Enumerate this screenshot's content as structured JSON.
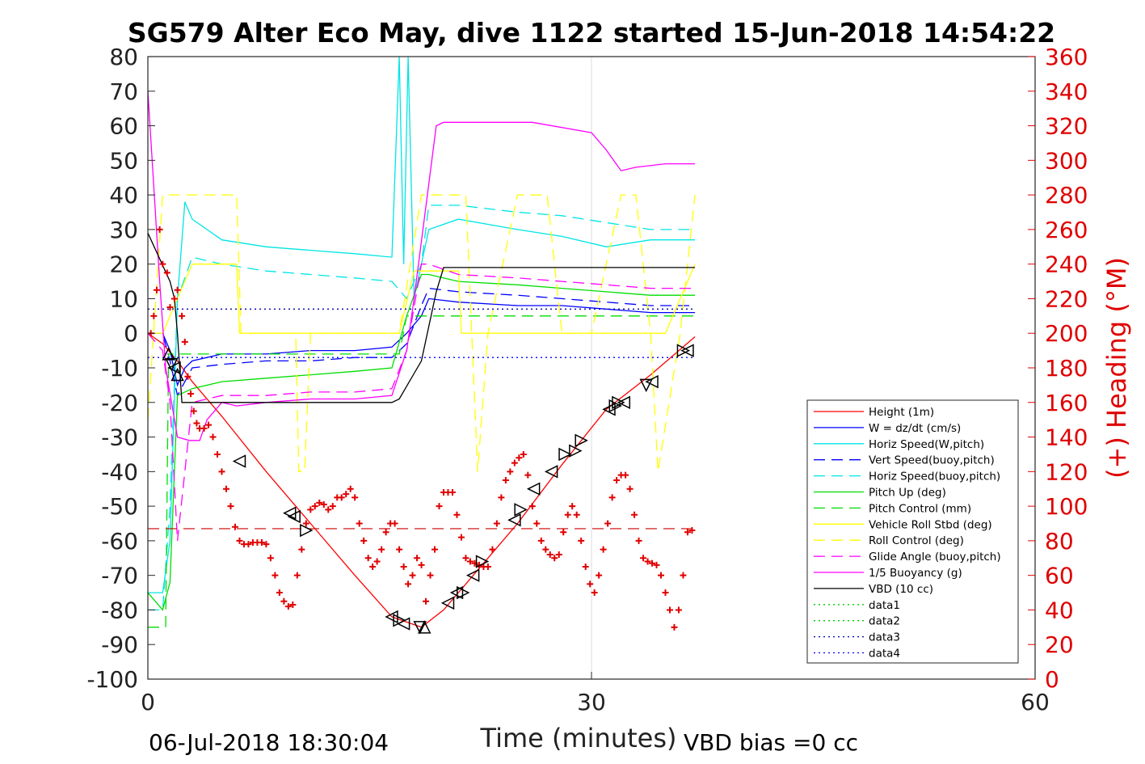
{
  "chart_data": {
    "type": "line",
    "title": "SG579 Alter Eco May, dive 1122 started 15-Jun-2018 14:54:22",
    "xlabel": "Time (minutes)",
    "ylabel_right": "(+) Heading (°M)",
    "xlim": [
      0,
      60
    ],
    "ylim_left": [
      -100,
      80
    ],
    "ylim_right": [
      0,
      360
    ],
    "x_ticks": [
      "0",
      "30",
      "60"
    ],
    "y_ticks_left": [
      "80",
      "70",
      "60",
      "50",
      "40",
      "30",
      "20",
      "10",
      "0",
      "-10",
      "-20",
      "-30",
      "-40",
      "-50",
      "-60",
      "-70",
      "-80",
      "-90",
      "-100"
    ],
    "y_ticks_right": [
      "360",
      "340",
      "320",
      "300",
      "280",
      "260",
      "240",
      "220",
      "200",
      "180",
      "160",
      "140",
      "120",
      "100",
      "80",
      "60",
      "40",
      "20",
      "0"
    ],
    "grid": "x only",
    "legend_position": "bottom-right",
    "footer_left": "06-Jul-2018 18:30:04",
    "footer_right": "VBD bias =0 cc",
    "colors": {
      "red": "#ff0000",
      "blue": "#0000ff",
      "cyan": "#00e5e5",
      "green": "#00dd00",
      "yellow": "#ffff00",
      "magenta": "#ff00ff",
      "black": "#000000",
      "heading": "#e00000"
    },
    "series": [
      {
        "name": "Height (1m)",
        "color": "#ff0000",
        "style": "solid",
        "x": [
          0,
          1,
          2,
          3,
          5,
          8,
          11,
          14,
          16.5,
          18.5,
          20,
          22,
          25,
          28,
          31,
          34,
          37
        ],
        "y": [
          0,
          -3,
          -8,
          -14,
          -24,
          -40,
          -55,
          -70,
          -82,
          -85,
          -80,
          -70,
          -55,
          -38,
          -22,
          -12,
          -1
        ]
      },
      {
        "name": "W = dz/dt (cm/s)",
        "color": "#0000ff",
        "style": "solid",
        "x": [
          0,
          1,
          1.5,
          2,
          2.5,
          3,
          5,
          8,
          11,
          14,
          16.5,
          17.5,
          18.5,
          19,
          21,
          25,
          28,
          31,
          34,
          37
        ],
        "y": [
          0,
          0,
          -5,
          -15,
          -10,
          -8,
          -6,
          -6,
          -5,
          -5,
          -4,
          0,
          5,
          10,
          9,
          8,
          8,
          7,
          6,
          6
        ]
      },
      {
        "name": "Horiz Speed(W,pitch)",
        "color": "#00e5e5",
        "style": "solid",
        "x": [
          0,
          1,
          1.5,
          2,
          2.5,
          3,
          5,
          8,
          11,
          14,
          16.5,
          17,
          17.3,
          17.6,
          18,
          18.5,
          19,
          21,
          25,
          28,
          31,
          34,
          37
        ],
        "y": [
          -75,
          -75,
          -60,
          10,
          38,
          33,
          27,
          25,
          24,
          23,
          22,
          80,
          20,
          80,
          10,
          20,
          30,
          33,
          30,
          28,
          25,
          27,
          27
        ]
      },
      {
        "name": "Vert Speed(buoy,pitch)",
        "color": "#0000ff",
        "style": "dashed",
        "x": [
          0,
          1,
          1.5,
          2,
          3,
          5,
          8,
          11,
          14,
          16.5,
          17.5,
          18.5,
          19,
          21,
          25,
          28,
          31,
          34,
          37
        ],
        "y": [
          0,
          0,
          -8,
          -18,
          -10,
          -9,
          -8,
          -8,
          -7,
          -7,
          -3,
          8,
          13,
          12,
          11,
          10,
          9,
          8,
          8
        ]
      },
      {
        "name": "Horiz Speed(buoy,pitch)",
        "color": "#00e5e5",
        "style": "dashed",
        "x": [
          0,
          1,
          1.5,
          2,
          3,
          5,
          8,
          11,
          14,
          16.5,
          17.5,
          18.5,
          19,
          21,
          25,
          28,
          31,
          34,
          37
        ],
        "y": [
          -80,
          -80,
          -50,
          10,
          22,
          20,
          18,
          17,
          16,
          15,
          10,
          20,
          37,
          37,
          35,
          34,
          32,
          30,
          30
        ]
      },
      {
        "name": "Pitch Up (deg)",
        "color": "#00dd00",
        "style": "solid",
        "x": [
          0,
          1,
          1.5,
          2,
          3,
          5,
          8,
          11,
          14,
          16.5,
          17.5,
          18.5,
          19,
          21,
          25,
          28,
          31,
          34,
          37
        ],
        "y": [
          -75,
          -80,
          -72,
          -18,
          -16,
          -14,
          -13,
          -12,
          -11,
          -10,
          5,
          17,
          17,
          15,
          14,
          13,
          12,
          11,
          11
        ]
      },
      {
        "name": "Pitch Control (mm)",
        "color": "#00dd00",
        "style": "dashed",
        "x": [
          0,
          1.2,
          1.4,
          1.6,
          3,
          8,
          14,
          17,
          17.5,
          18.5,
          19,
          25,
          30,
          35,
          37
        ],
        "y": [
          -85,
          -85,
          -6,
          -6,
          -6,
          -6,
          -6,
          -6,
          5,
          5,
          5,
          5,
          5,
          5,
          5
        ]
      },
      {
        "name": "Vehicle Roll Stbd (deg)",
        "color": "#ffff00",
        "style": "solid",
        "x": [
          0,
          1,
          2,
          3,
          5,
          6,
          6.2,
          8,
          10,
          12,
          14,
          16,
          17,
          18,
          18.5,
          19,
          20,
          21,
          21.2,
          24,
          26,
          28,
          30,
          33,
          35,
          36,
          37
        ],
        "y": [
          0,
          0,
          10,
          20,
          20,
          20,
          0,
          0,
          0,
          0,
          0,
          0,
          0,
          18,
          18,
          18,
          18,
          18,
          0,
          0,
          0,
          0,
          0,
          0,
          0,
          10,
          20
        ]
      },
      {
        "name": "Roll Control (deg)",
        "color": "#ffff00",
        "style": "dashed",
        "x": [
          0,
          1,
          2,
          3,
          5,
          6,
          6.3,
          9,
          10,
          10.2,
          10.6,
          11,
          14,
          17,
          18.5,
          19,
          20,
          21,
          21.5,
          22.3,
          23,
          25,
          26,
          27,
          28,
          30,
          32,
          33,
          34,
          34.5,
          36,
          37
        ],
        "y": [
          -25,
          40,
          40,
          40,
          40,
          40,
          0,
          0,
          0,
          -40,
          -40,
          0,
          0,
          0,
          40,
          40,
          40,
          40,
          40,
          -40,
          0,
          40,
          40,
          40,
          0,
          0,
          40,
          40,
          0,
          -40,
          0,
          40
        ]
      },
      {
        "name": "Glide Angle (buoy,pitch)",
        "color": "#ff00ff",
        "style": "dashed",
        "x": [
          0,
          1,
          1.5,
          2,
          3,
          5,
          8,
          11,
          14,
          16.5,
          17.5,
          18.5,
          19,
          21,
          25,
          28,
          31,
          34,
          37
        ],
        "y": [
          0,
          -5,
          -20,
          -60,
          -20,
          -18,
          -18,
          -17,
          -17,
          -16,
          -5,
          20,
          20,
          17,
          16,
          15,
          14,
          13,
          13
        ]
      },
      {
        "name": "1/5 Buoyancy (g)",
        "color": "#ff00ff",
        "style": "solid",
        "x": [
          0,
          0.8,
          1.2,
          2,
          2.8,
          3.5,
          4,
          5,
          6,
          8,
          11,
          14,
          16.5,
          17.5,
          18,
          19.5,
          20,
          22,
          26,
          30,
          31,
          32,
          33,
          35,
          37
        ],
        "y": [
          70,
          15,
          -10,
          -30,
          -31,
          -31,
          -25,
          -20,
          -21,
          -20,
          -19,
          -19,
          -18,
          -5,
          10,
          60,
          61,
          61,
          61,
          58,
          53,
          47,
          48,
          49,
          49
        ]
      },
      {
        "name": "VBD (10 cc)",
        "color": "#000000",
        "style": "solid",
        "x": [
          0,
          1.5,
          1.8,
          2,
          2.3,
          8,
          14,
          16.5,
          17,
          18.5,
          19.5,
          20,
          25,
          30,
          35,
          37
        ],
        "y": [
          29,
          15,
          10,
          0,
          -20,
          -20,
          -20,
          -20,
          -19,
          -8,
          12,
          19,
          19,
          19,
          19,
          19
        ]
      },
      {
        "name": "data1",
        "color": "#00cc00",
        "style": "dotted",
        "x": [],
        "y": []
      },
      {
        "name": "data2",
        "color": "#00cc00",
        "style": "dotted",
        "x": [],
        "y": []
      },
      {
        "name": "data3",
        "color": "#0000aa",
        "style": "dotted",
        "x": [
          0,
          37
        ],
        "y": [
          7,
          7
        ]
      },
      {
        "name": "data4",
        "color": "#0000ff",
        "style": "dotted",
        "x": [
          0,
          37
        ],
        "y": [
          -7,
          -7
        ]
      }
    ],
    "reference_lines": [
      {
        "kind": "red-dashed-horizontal",
        "color": "#cc0000",
        "y": -56.5,
        "x": [
          0,
          37
        ]
      }
    ],
    "heading_points": {
      "axis": "right",
      "marker": "+",
      "color": "#e00000",
      "x": [
        0.2,
        0.4,
        0.6,
        0.8,
        1.0,
        1.3,
        1.5,
        1.8,
        2.0,
        2.3,
        2.5,
        2.7,
        2.9,
        3.1,
        3.3,
        3.5,
        3.8,
        4.1,
        4.4,
        4.7,
        5.0,
        5.3,
        5.6,
        5.9,
        6.2,
        6.5,
        6.8,
        7.1,
        7.4,
        7.7,
        8.0,
        8.3,
        8.6,
        8.9,
        9.2,
        9.5,
        9.8,
        10.1,
        10.4,
        10.7,
        11.0,
        11.3,
        11.6,
        11.9,
        12.2,
        12.5,
        12.8,
        13.1,
        13.4,
        13.7,
        14.0,
        14.3,
        14.6,
        14.9,
        15.2,
        15.5,
        15.8,
        16.1,
        16.4,
        16.7,
        17.0,
        17.3,
        17.6,
        17.9,
        18.2,
        18.5,
        18.8,
        19.1,
        19.4,
        19.7,
        20.0,
        20.3,
        20.6,
        20.9,
        21.2,
        21.5,
        21.8,
        22.1,
        22.4,
        22.7,
        23.0,
        23.3,
        23.6,
        23.9,
        24.2,
        24.5,
        24.8,
        25.1,
        25.4,
        25.7,
        26.0,
        26.3,
        26.6,
        26.9,
        27.2,
        27.5,
        27.8,
        28.1,
        28.4,
        28.7,
        29.0,
        29.3,
        29.6,
        29.9,
        30.2,
        30.5,
        30.8,
        31.1,
        31.4,
        31.7,
        32.0,
        32.3,
        32.6,
        32.9,
        33.2,
        33.5,
        33.8,
        34.1,
        34.4,
        34.7,
        35.0,
        35.3,
        35.6,
        35.9,
        36.2,
        36.5,
        36.8
      ],
      "y": [
        200,
        210,
        225,
        260,
        240,
        235,
        215,
        220,
        225,
        210,
        195,
        175,
        165,
        155,
        148,
        145,
        145,
        147,
        140,
        130,
        120,
        110,
        100,
        88,
        80,
        78,
        78,
        79,
        79,
        79,
        78,
        70,
        60,
        50,
        45,
        42,
        43,
        60,
        75,
        90,
        98,
        100,
        102,
        101,
        98,
        100,
        105,
        105,
        107,
        110,
        105,
        90,
        80,
        70,
        65,
        68,
        75,
        85,
        90,
        90,
        75,
        65,
        55,
        60,
        70,
        66,
        45,
        60,
        75,
        100,
        108,
        108,
        108,
        95,
        82,
        70,
        68,
        67,
        66,
        65,
        65,
        75,
        90,
        105,
        115,
        120,
        125,
        128,
        130,
        118,
        100,
        90,
        80,
        75,
        72,
        70,
        72,
        85,
        95,
        100,
        95,
        80,
        65,
        55,
        50,
        60,
        75,
        90,
        105,
        115,
        118,
        118,
        110,
        95,
        80,
        70,
        68,
        67,
        66,
        60,
        50,
        40,
        30,
        40,
        60,
        85,
        86
      ]
    },
    "triangle_markers": {
      "marker": "triangle",
      "color": "#000000",
      "points": [
        {
          "x": 1.4,
          "y": -6,
          "dir": "up"
        },
        {
          "x": 1.6,
          "y": -9,
          "dir": "down"
        },
        {
          "x": 1.8,
          "y": -10,
          "dir": "left"
        },
        {
          "x": 2.0,
          "y": -12,
          "dir": "up"
        },
        {
          "x": 6.2,
          "y": -37,
          "dir": "left"
        },
        {
          "x": 9.6,
          "y": -52,
          "dir": "left"
        },
        {
          "x": 9.9,
          "y": -53,
          "dir": "left"
        },
        {
          "x": 10.7,
          "y": -57,
          "dir": "right"
        },
        {
          "x": 16.5,
          "y": -82,
          "dir": "left"
        },
        {
          "x": 17.0,
          "y": -83,
          "dir": "right"
        },
        {
          "x": 17.3,
          "y": -84,
          "dir": "left"
        },
        {
          "x": 18.4,
          "y": -85,
          "dir": "down"
        },
        {
          "x": 18.7,
          "y": -85,
          "dir": "up"
        },
        {
          "x": 20.3,
          "y": -78,
          "dir": "left"
        },
        {
          "x": 20.9,
          "y": -75,
          "dir": "left"
        },
        {
          "x": 21.3,
          "y": -75,
          "dir": "right"
        },
        {
          "x": 22.0,
          "y": -70,
          "dir": "left"
        },
        {
          "x": 22.6,
          "y": -66,
          "dir": "right"
        },
        {
          "x": 24.8,
          "y": -54,
          "dir": "left"
        },
        {
          "x": 25.2,
          "y": -51,
          "dir": "right"
        },
        {
          "x": 26.1,
          "y": -45,
          "dir": "left"
        },
        {
          "x": 27.3,
          "y": -40,
          "dir": "left"
        },
        {
          "x": 28.2,
          "y": -35,
          "dir": "right"
        },
        {
          "x": 28.9,
          "y": -34,
          "dir": "right"
        },
        {
          "x": 29.3,
          "y": -31,
          "dir": "right"
        },
        {
          "x": 31.2,
          "y": -22,
          "dir": "left"
        },
        {
          "x": 31.6,
          "y": -21,
          "dir": "right"
        },
        {
          "x": 31.8,
          "y": -20,
          "dir": "right"
        },
        {
          "x": 32.2,
          "y": -20,
          "dir": "left"
        },
        {
          "x": 33.7,
          "y": -15,
          "dir": "down"
        },
        {
          "x": 34.1,
          "y": -14,
          "dir": "left"
        },
        {
          "x": 36.2,
          "y": -5,
          "dir": "right"
        },
        {
          "x": 36.5,
          "y": -5,
          "dir": "left"
        }
      ]
    }
  }
}
